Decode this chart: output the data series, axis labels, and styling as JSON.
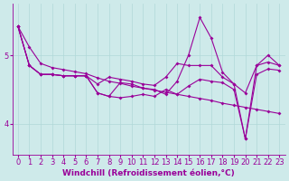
{
  "x_values": [
    0,
    1,
    2,
    3,
    4,
    5,
    6,
    7,
    8,
    9,
    10,
    11,
    12,
    13,
    14,
    15,
    16,
    17,
    18,
    19,
    20,
    21,
    22,
    23
  ],
  "line1": [
    5.42,
    5.12,
    4.88,
    4.82,
    4.79,
    4.76,
    4.73,
    4.67,
    4.62,
    4.59,
    4.55,
    4.52,
    4.49,
    4.46,
    4.43,
    4.4,
    4.37,
    4.34,
    4.3,
    4.27,
    4.24,
    4.21,
    4.18,
    4.15
  ],
  "line2": [
    5.42,
    4.85,
    4.72,
    4.72,
    4.7,
    4.7,
    4.7,
    4.58,
    4.68,
    4.65,
    4.62,
    4.58,
    4.56,
    4.68,
    4.88,
    4.85,
    4.85,
    4.85,
    4.68,
    4.58,
    4.45,
    4.85,
    4.9,
    4.85
  ],
  "line3": [
    5.42,
    4.85,
    4.72,
    4.72,
    4.7,
    4.7,
    4.7,
    4.45,
    4.4,
    4.6,
    4.58,
    4.52,
    4.5,
    4.43,
    4.62,
    5.0,
    5.55,
    5.25,
    4.75,
    4.58,
    3.78,
    4.85,
    5.0,
    4.85
  ],
  "line4": [
    5.42,
    4.85,
    4.72,
    4.72,
    4.7,
    4.7,
    4.7,
    4.45,
    4.4,
    4.38,
    4.4,
    4.43,
    4.4,
    4.5,
    4.43,
    4.55,
    4.65,
    4.62,
    4.6,
    4.5,
    3.78,
    4.72,
    4.8,
    4.78
  ],
  "bg_color": "#ceeaea",
  "line_color": "#990099",
  "grid_color": "#b0d8d8",
  "xlabel": "Windchill (Refroidissement éolien,°C)",
  "ylim": [
    3.55,
    5.75
  ],
  "yticks": [
    4,
    5
  ],
  "xlim": [
    -0.5,
    23.5
  ],
  "xtick_labels": [
    "0",
    "1",
    "2",
    "3",
    "4",
    "5",
    "6",
    "7",
    "8",
    "9",
    "10",
    "11",
    "12",
    "13",
    "14",
    "15",
    "16",
    "17",
    "18",
    "19",
    "20",
    "21",
    "22",
    "23"
  ],
  "fontsize_xlabel": 6.5,
  "fontsize_ticks": 6.0,
  "marker": "D",
  "markersize": 2.0,
  "linewidth": 0.8
}
